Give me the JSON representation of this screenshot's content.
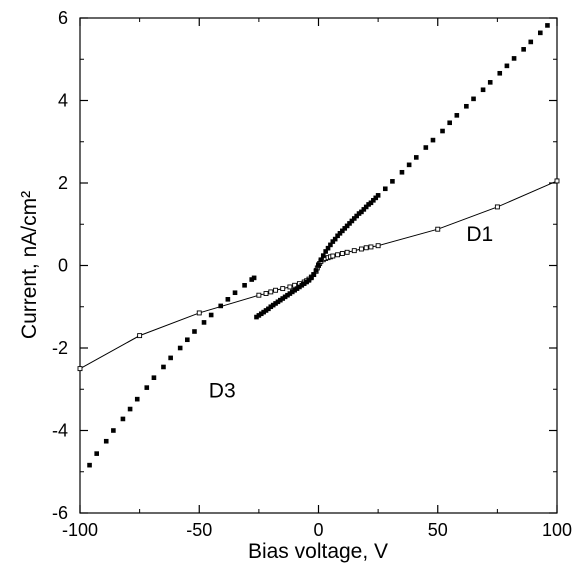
{
  "chart_data": {
    "type": "scatter",
    "xlabel": "Bias voltage, V",
    "ylabel": "Current, nA/cm²",
    "xlim": [
      -100,
      100
    ],
    "ylim": [
      -6,
      6
    ],
    "xticks": [
      "-100",
      "-50",
      "0",
      "50",
      "100"
    ],
    "yticks": [
      "-6",
      "-4",
      "-2",
      "0",
      "2",
      "4",
      "6"
    ],
    "grid": false,
    "annotations": [
      {
        "text": "D1",
        "x": 62,
        "y": 0.6
      },
      {
        "text": "D3",
        "x": -46,
        "y": -3.2
      }
    ],
    "series": [
      {
        "name": "D1",
        "style": "line-with-open-squares",
        "color": "#000000",
        "x": [
          -100,
          -75,
          -50,
          -25,
          -22,
          -20,
          -18,
          -15,
          -12,
          -10,
          -8,
          -6,
          -5,
          -4,
          -3,
          -2,
          -1,
          -0.5,
          0,
          0.5,
          1,
          2,
          3,
          4,
          5,
          6,
          8,
          10,
          12,
          15,
          18,
          20,
          22,
          25,
          50,
          75,
          100
        ],
        "y": [
          -2.5,
          -1.7,
          -1.15,
          -0.72,
          -0.68,
          -0.64,
          -0.6,
          -0.56,
          -0.52,
          -0.48,
          -0.44,
          -0.4,
          -0.37,
          -0.33,
          -0.28,
          -0.22,
          -0.14,
          -0.06,
          0.0,
          0.05,
          0.1,
          0.14,
          0.17,
          0.19,
          0.21,
          0.23,
          0.26,
          0.29,
          0.32,
          0.36,
          0.4,
          0.43,
          0.45,
          0.48,
          0.88,
          1.42,
          2.05
        ]
      },
      {
        "name": "D3",
        "style": "markers",
        "color": "#000000",
        "x": [
          -96,
          -93,
          -89,
          -86,
          -82,
          -79,
          -76,
          -72,
          -69,
          -65,
          -62,
          -58,
          -55,
          -52,
          -48,
          -45,
          -41,
          -38,
          -35,
          -31,
          -28,
          -27,
          -26,
          -25,
          -24,
          -23,
          -22,
          -21,
          -20,
          -19,
          -18,
          -17,
          -16,
          -15,
          -14,
          -13,
          -12,
          -11,
          -10,
          -9,
          -8,
          -7,
          -6,
          -5,
          -4,
          -3,
          -2,
          -1,
          0,
          1,
          2,
          3,
          4,
          5,
          6,
          7,
          8,
          9,
          10,
          11,
          12,
          13,
          14,
          15,
          16,
          17,
          18,
          19,
          20,
          21,
          22,
          23,
          24,
          25,
          28,
          31,
          35,
          38,
          41,
          45,
          48,
          52,
          55,
          58,
          62,
          65,
          69,
          72,
          76,
          79,
          82,
          86,
          89,
          93,
          96
        ],
        "y": [
          -4.84,
          -4.56,
          -4.26,
          -4.0,
          -3.72,
          -3.48,
          -3.24,
          -2.96,
          -2.72,
          -2.46,
          -2.24,
          -2.0,
          -1.8,
          -1.6,
          -1.38,
          -1.2,
          -0.98,
          -0.82,
          -0.66,
          -0.48,
          -0.34,
          -0.3,
          -1.25,
          -1.21,
          -1.17,
          -1.13,
          -1.09,
          -1.05,
          -1.0,
          -0.96,
          -0.92,
          -0.88,
          -0.84,
          -0.8,
          -0.76,
          -0.72,
          -0.68,
          -0.64,
          -0.6,
          -0.56,
          -0.52,
          -0.48,
          -0.44,
          -0.4,
          -0.36,
          -0.3,
          -0.22,
          -0.12,
          0.02,
          0.14,
          0.24,
          0.34,
          0.42,
          0.5,
          0.58,
          0.64,
          0.72,
          0.78,
          0.84,
          0.9,
          0.96,
          1.02,
          1.08,
          1.14,
          1.2,
          1.26,
          1.3,
          1.36,
          1.42,
          1.48,
          1.52,
          1.58,
          1.64,
          1.7,
          1.86,
          2.04,
          2.26,
          2.44,
          2.62,
          2.86,
          3.04,
          3.26,
          3.46,
          3.64,
          3.86,
          4.04,
          4.26,
          4.44,
          4.66,
          4.84,
          5.02,
          5.24,
          5.42,
          5.64,
          5.82
        ]
      }
    ]
  }
}
